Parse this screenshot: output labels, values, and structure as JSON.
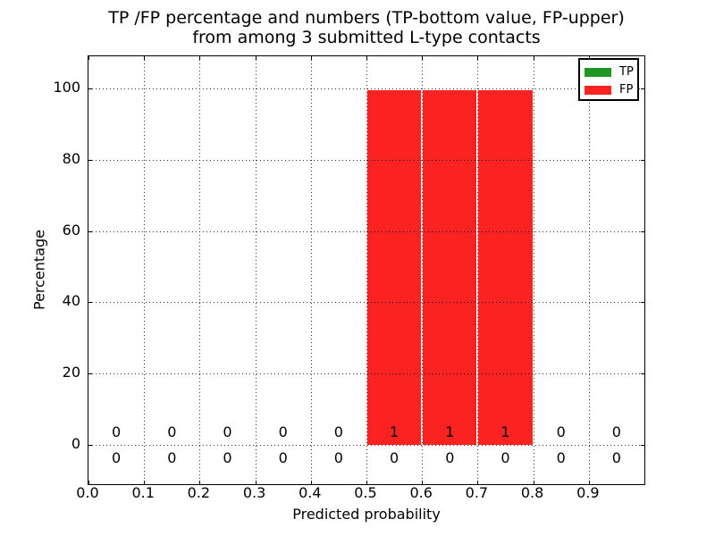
{
  "figure": {
    "title_line1": "TP /FP percentage and numbers (TP-bottom value, FP-upper)",
    "title_line2": "from among 3 submitted L-type contacts",
    "xlabel": "Predicted probability",
    "ylabel": "Percentage"
  },
  "colors": {
    "tp_green": "#229622",
    "fp_red": "#fb2222",
    "axis_black": "#000000",
    "background": "#ffffff"
  },
  "chart_data": {
    "type": "bar",
    "stacked": true,
    "title": "TP /FP percentage and numbers (TP-bottom value, FP-upper) from among 3 submitted L-type contacts",
    "xlabel": "Predicted probability",
    "ylabel": "Percentage",
    "xlim": [
      0.0,
      1.0
    ],
    "ylim": [
      -11,
      109
    ],
    "grid": "dotted",
    "legend_position": "upper right",
    "bin_edges": [
      0.0,
      0.1,
      0.2,
      0.3,
      0.4,
      0.5,
      0.6,
      0.7,
      0.8,
      0.9,
      1.0
    ],
    "bin_centers": [
      0.05,
      0.15,
      0.25,
      0.35,
      0.45,
      0.55,
      0.65,
      0.75,
      0.85,
      0.95
    ],
    "xtick_values": [
      0.0,
      0.1,
      0.2,
      0.3,
      0.4,
      0.5,
      0.6,
      0.7,
      0.8,
      0.9
    ],
    "xtick_labels": [
      "0.0",
      "0.1",
      "0.2",
      "0.3",
      "0.4",
      "0.5",
      "0.6",
      "0.7",
      "0.8",
      "0.9"
    ],
    "ytick_values": [
      0,
      20,
      40,
      60,
      80,
      100
    ],
    "ytick_labels": [
      "0",
      "20",
      "40",
      "60",
      "80",
      "100"
    ],
    "series": [
      {
        "name": "TP",
        "color": "#229622",
        "percent": [
          0,
          0,
          0,
          0,
          0,
          0,
          0,
          0,
          0,
          0
        ],
        "counts": [
          0,
          0,
          0,
          0,
          0,
          0,
          0,
          0,
          0,
          0
        ],
        "count_label_y": -3.75
      },
      {
        "name": "FP",
        "color": "#fb2222",
        "percent": [
          0,
          0,
          0,
          0,
          0,
          99.4,
          99.4,
          99.4,
          0,
          0
        ],
        "counts": [
          0,
          0,
          0,
          0,
          0,
          1,
          1,
          1,
          0,
          0
        ],
        "count_label_y": 3.5
      }
    ]
  }
}
